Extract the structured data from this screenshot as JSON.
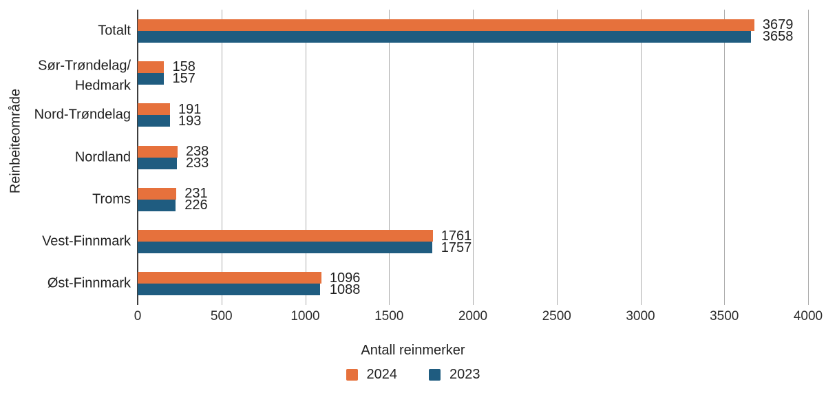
{
  "chart_data": {
    "type": "bar",
    "orientation": "horizontal",
    "title": "",
    "xlabel": "Antall reinmerker",
    "ylabel": "Reinbeiteområde",
    "xlim": [
      0,
      4000
    ],
    "xticks": [
      0,
      500,
      1000,
      1500,
      2000,
      2500,
      3000,
      3500,
      4000
    ],
    "grid": "vertical",
    "value_labels_shown": true,
    "legend_position": "bottom-center",
    "categories": [
      "Totalt",
      "Sør-Trøndelag/\nHedmark",
      "Nord-Trøndelag",
      "Nordland",
      "Troms",
      "Vest-Finnmark",
      "Øst-Finnmark"
    ],
    "series": [
      {
        "name": "2024",
        "color": "#E6713C",
        "values": [
          3679,
          158,
          191,
          238,
          231,
          1761,
          1096
        ]
      },
      {
        "name": "2023",
        "color": "#1F5C80",
        "values": [
          3658,
          157,
          193,
          233,
          226,
          1757,
          1088
        ]
      }
    ]
  },
  "colors": {
    "gridline": "#ABABAB",
    "axis_spine": "#3D3D3D",
    "text": "#262626",
    "background": "#FFFFFF"
  }
}
